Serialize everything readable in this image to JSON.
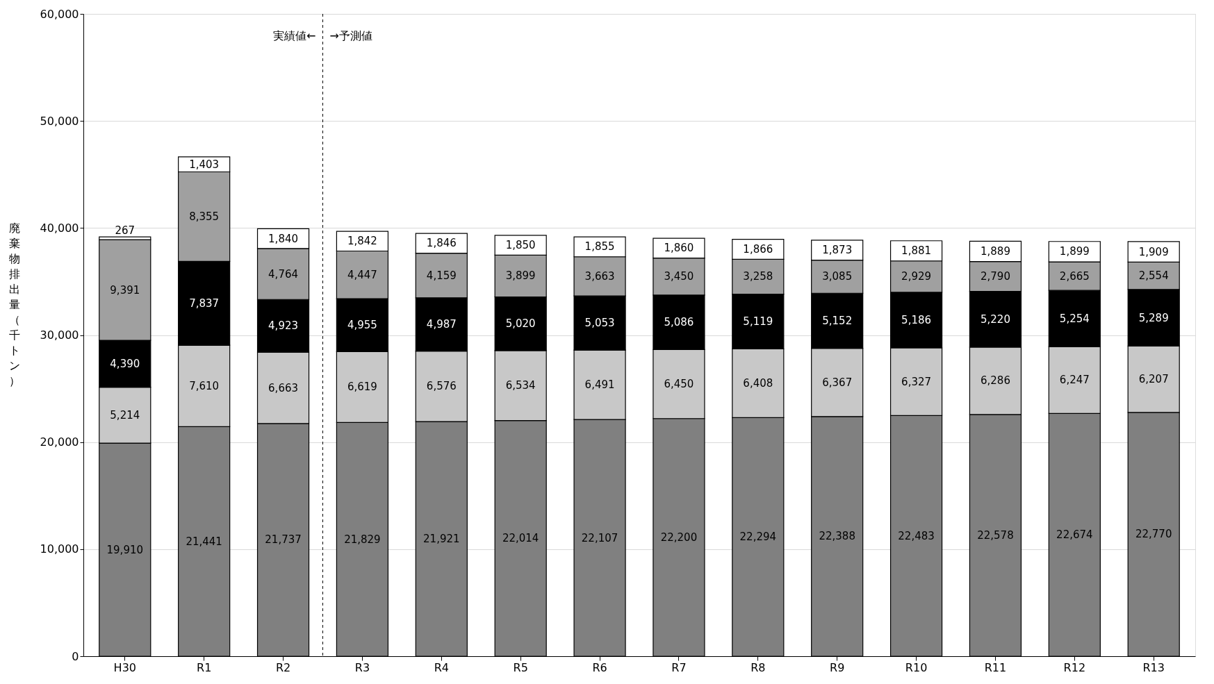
{
  "chart_data": {
    "type": "bar",
    "stacked": true,
    "ylabel": "廃棄物排出量（千トン）",
    "categories": [
      "H30",
      "R1",
      "R2",
      "R3",
      "R4",
      "R5",
      "R6",
      "R7",
      "R8",
      "R9",
      "R10",
      "R11",
      "R12",
      "R13"
    ],
    "series": [
      {
        "color": "#808080",
        "values": [
          19910,
          21441,
          21737,
          21829,
          21921,
          22014,
          22107,
          22200,
          22294,
          22388,
          22483,
          22578,
          22674,
          22770
        ],
        "value_labels": [
          "19,910",
          "21,441",
          "21,737",
          "21,829",
          "21,921",
          "22,014",
          "22,107",
          "22,200",
          "22,294",
          "22,388",
          "22,483",
          "22,578",
          "22,674",
          "22,770"
        ]
      },
      {
        "color": "#c8c8c8",
        "values": [
          5214,
          7610,
          6663,
          6619,
          6576,
          6534,
          6491,
          6450,
          6408,
          6367,
          6327,
          6286,
          6247,
          6207
        ],
        "value_labels": [
          "5,214",
          "7,610",
          "6,663",
          "6,619",
          "6,576",
          "6,534",
          "6,491",
          "6,450",
          "6,408",
          "6,367",
          "6,327",
          "6,286",
          "6,247",
          "6,207"
        ]
      },
      {
        "color": "#000000",
        "values": [
          4390,
          7837,
          4923,
          4955,
          4987,
          5020,
          5053,
          5086,
          5119,
          5152,
          5186,
          5220,
          5254,
          5289
        ],
        "value_labels": [
          "4,390",
          "7,837",
          "4,923",
          "4,955",
          "4,987",
          "5,020",
          "5,053",
          "5,086",
          "5,119",
          "5,152",
          "5,186",
          "5,220",
          "5,254",
          "5,289"
        ]
      },
      {
        "color": "#a0a0a0",
        "values": [
          9391,
          8355,
          4764,
          4447,
          4159,
          3899,
          3663,
          3450,
          3258,
          3085,
          2929,
          2790,
          2665,
          2554
        ],
        "value_labels": [
          "9,391",
          "8,355",
          "4,764",
          "4,447",
          "4,159",
          "3,899",
          "3,663",
          "3,450",
          "3,258",
          "3,085",
          "2,929",
          "2,790",
          "2,665",
          "2,554"
        ]
      },
      {
        "color": "#ffffff",
        "values": [
          267,
          1403,
          1840,
          1842,
          1846,
          1850,
          1855,
          1860,
          1866,
          1873,
          1881,
          1889,
          1899,
          1909
        ],
        "value_labels": [
          "267",
          "1,403",
          "1,840",
          "1,842",
          "1,846",
          "1,850",
          "1,855",
          "1,860",
          "1,866",
          "1,873",
          "1,881",
          "1,889",
          "1,899",
          "1,909"
        ]
      }
    ],
    "ylim": [
      0,
      60000
    ],
    "yticks": [
      {
        "value": 0,
        "label": "0"
      },
      {
        "value": 10000,
        "label": "10,000"
      },
      {
        "value": 20000,
        "label": "20,000"
      },
      {
        "value": 30000,
        "label": "30,000"
      },
      {
        "value": 40000,
        "label": "40,000"
      },
      {
        "value": 50000,
        "label": "50,000"
      },
      {
        "value": 60000,
        "label": "60,000"
      }
    ],
    "grid": "y",
    "ref_lines": [
      {
        "axis": "x",
        "value": "R2",
        "line_style": "dashed",
        "color": "#000000"
      }
    ],
    "annotations": [
      "実績値←",
      "→予測値"
    ]
  }
}
